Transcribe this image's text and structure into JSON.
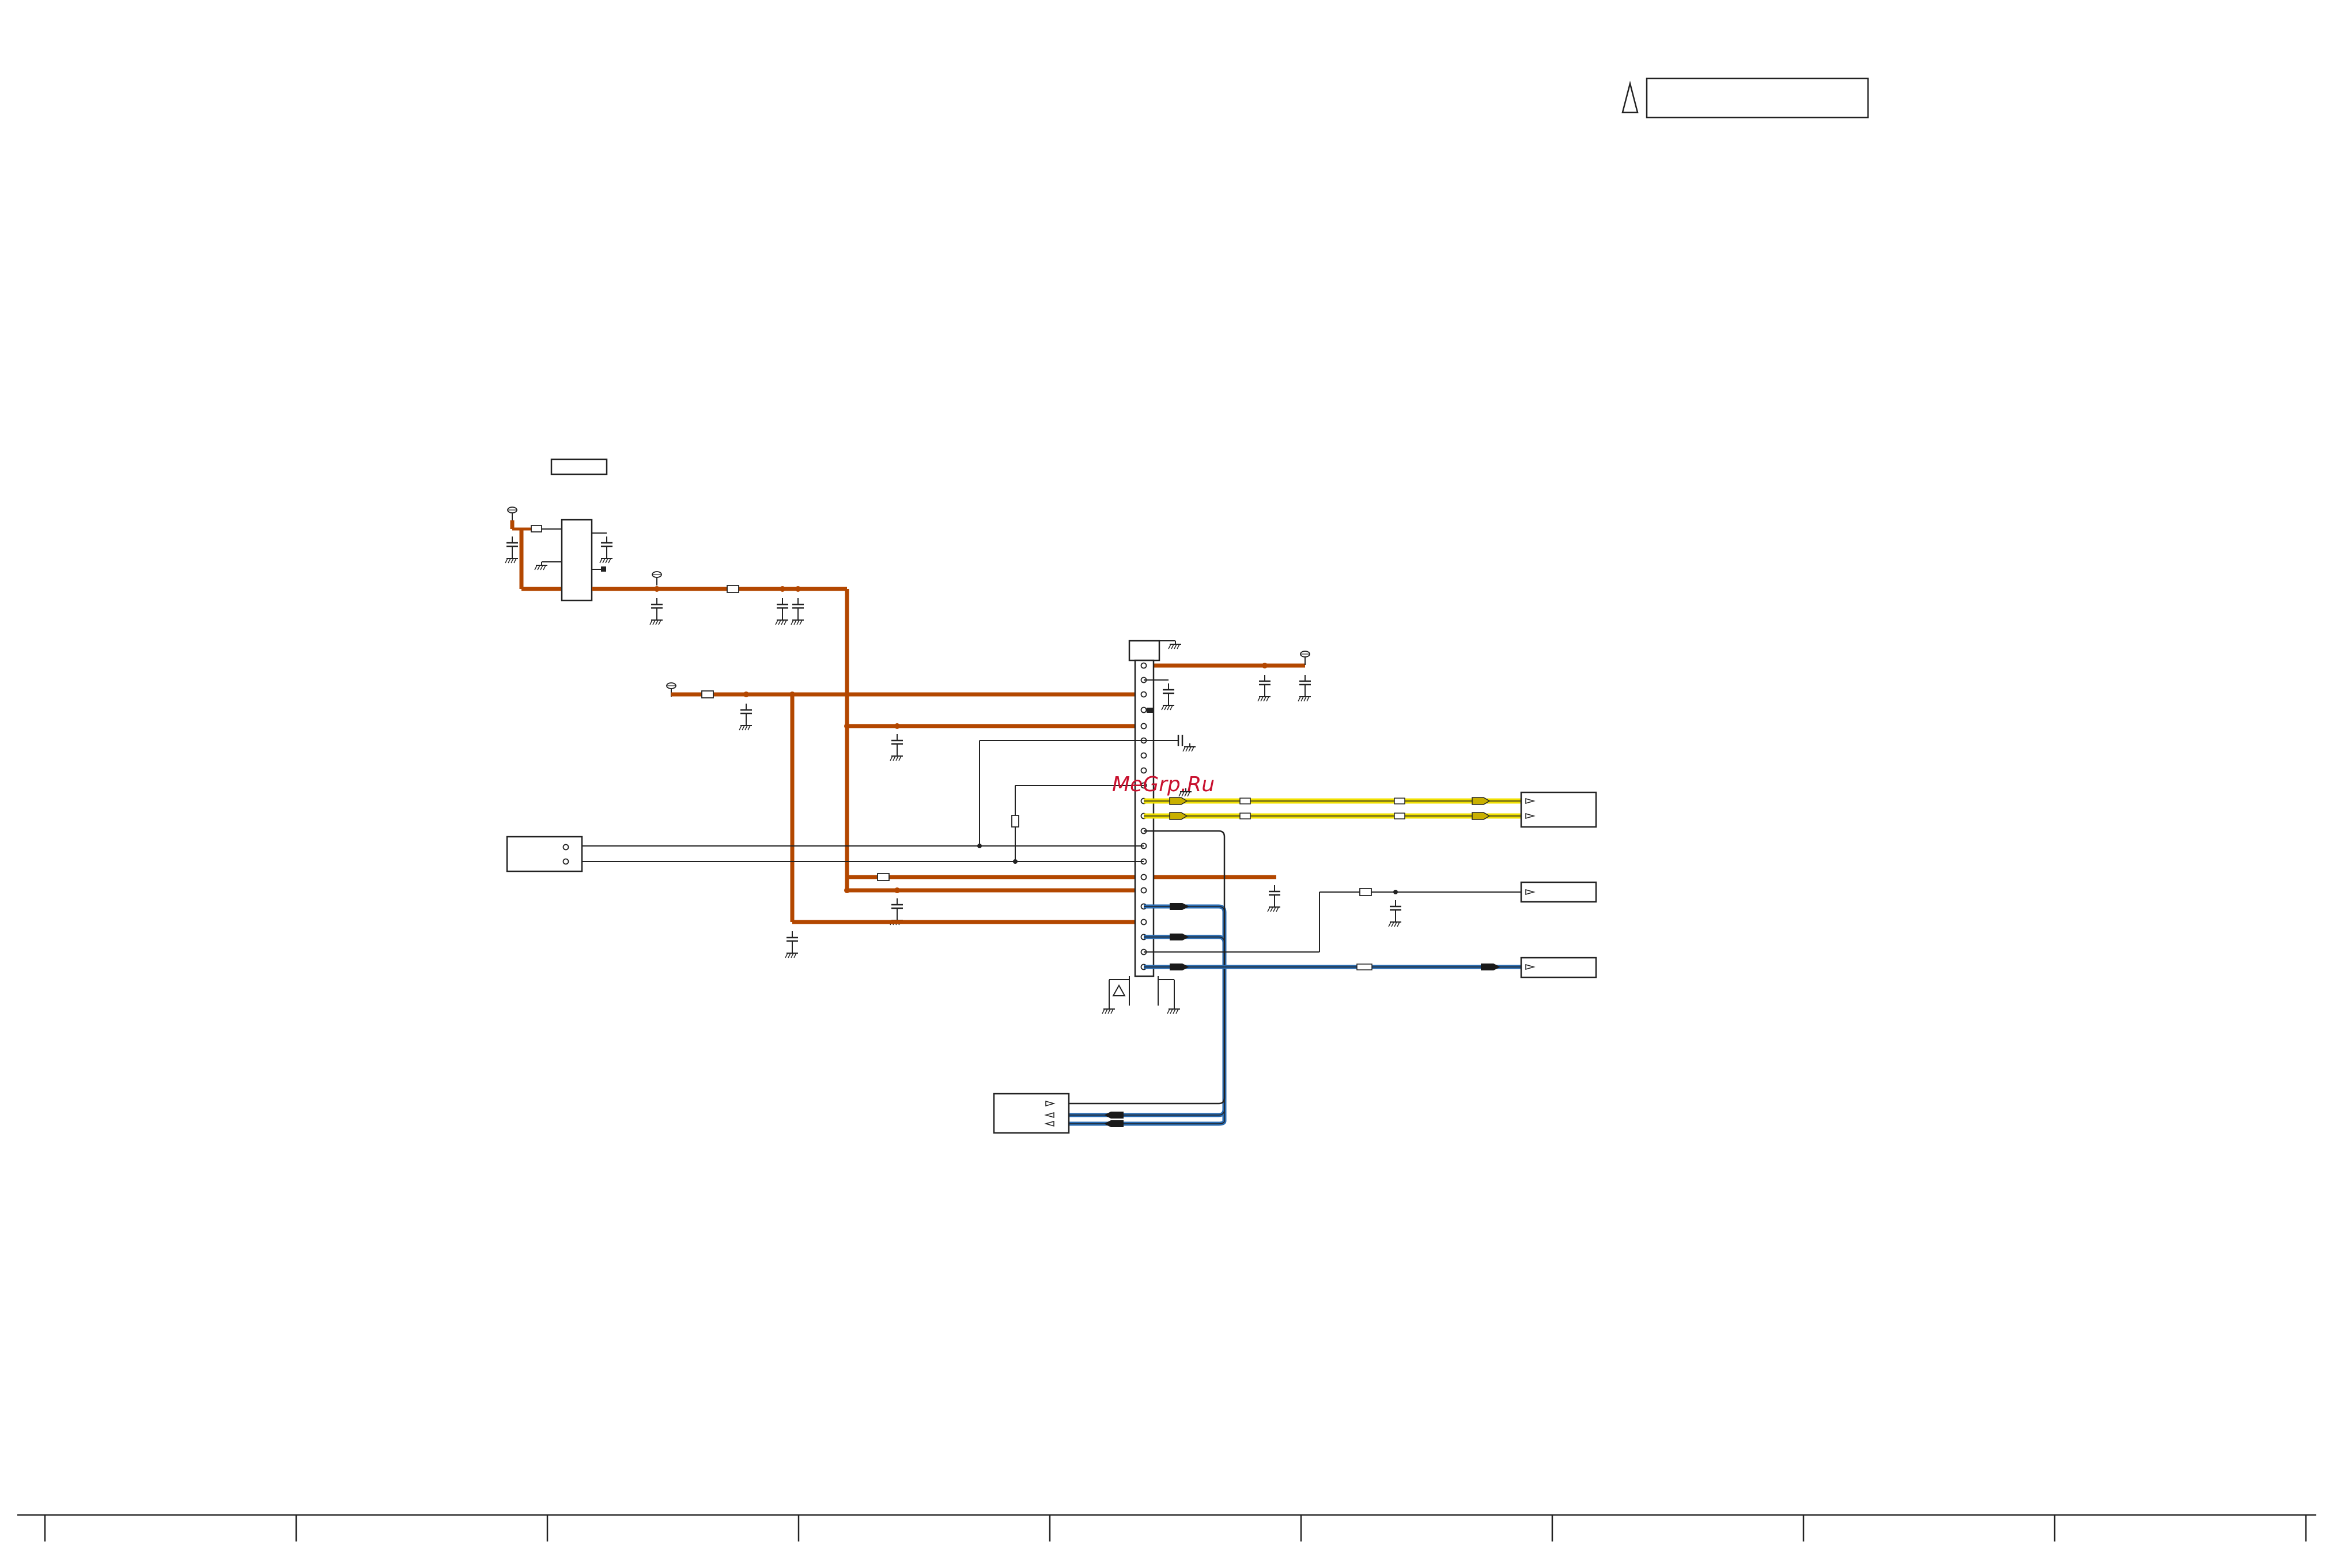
{
  "watermark": {
    "text": "MeGrp.Ru",
    "color": "#c8102e"
  },
  "wire_colors": {
    "power": "#b34700",
    "highlight": "#f0e000",
    "data": "#2a6bb0",
    "line": "#222222"
  },
  "icons": {
    "warning": "triangle-warning-icon",
    "ground": "ground-symbol-icon",
    "supply": "supply-terminal-icon",
    "arrow": "signal-arrow-icon"
  }
}
